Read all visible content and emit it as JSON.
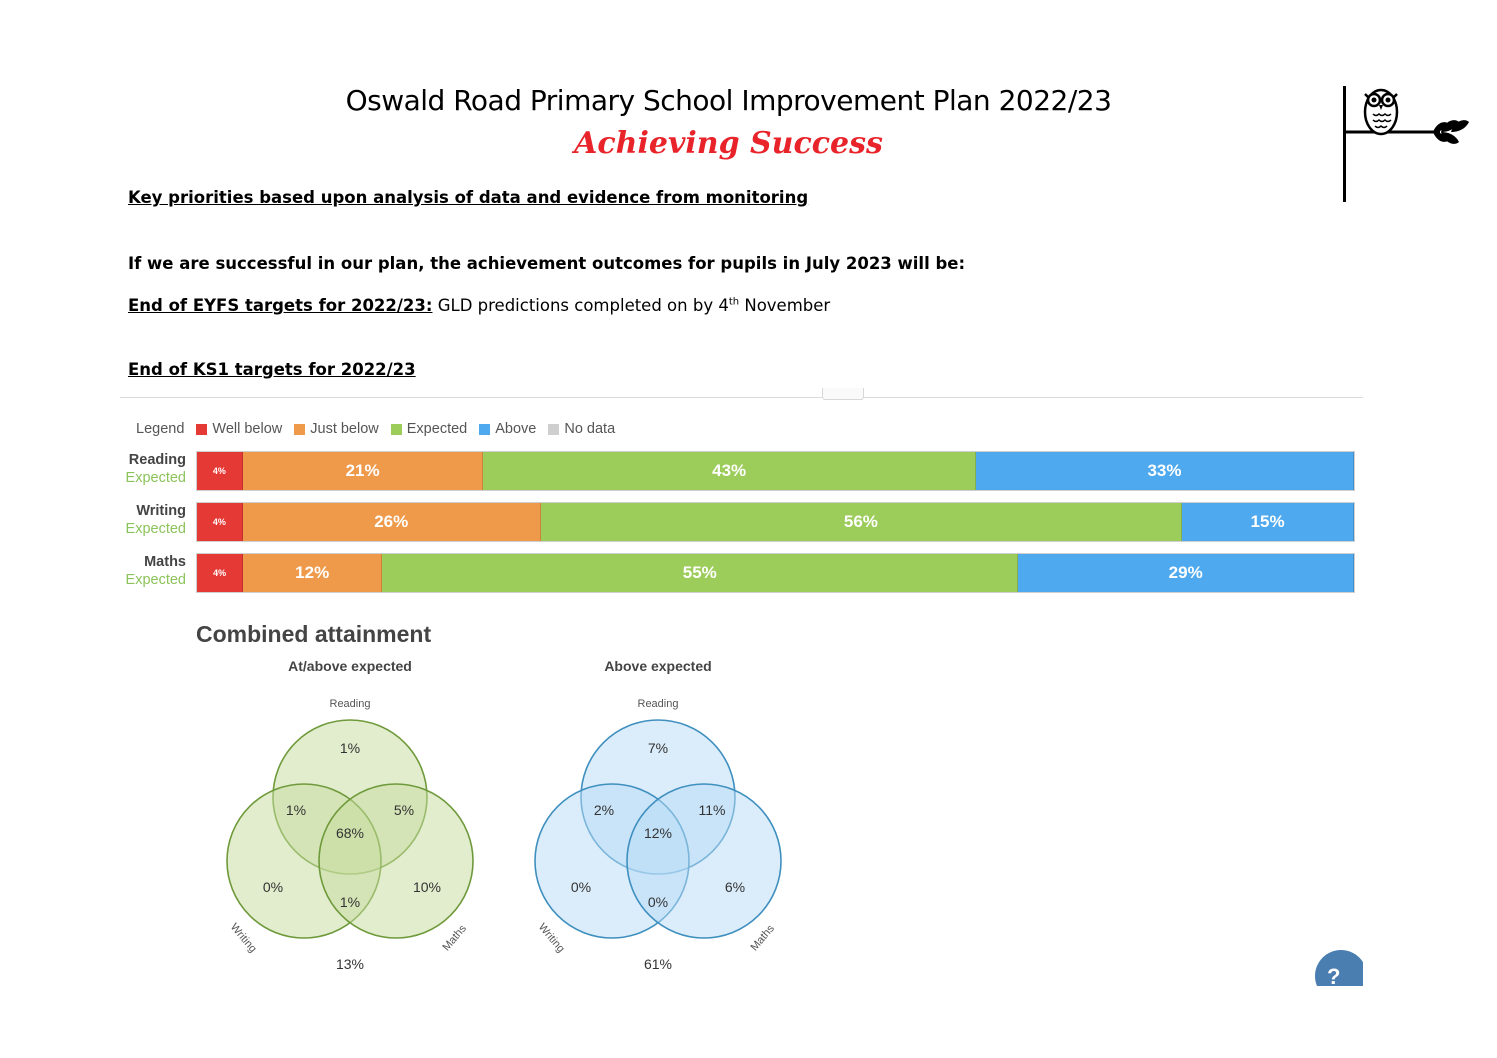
{
  "header": {
    "title": "Oswald Road Primary School Improvement Plan 2022/23",
    "subtitle": "Achieving Success"
  },
  "body": {
    "key_priorities": "Key priorities based upon analysis of data and evidence from monitoring",
    "success_statement": "If we are successful in our plan, the achievement outcomes for pupils in July 2023 will be:",
    "eyfs_heading": "End of EYFS targets for 2022/23:",
    "eyfs_text_pre": " GLD predictions completed on by 4",
    "eyfs_sup": "th",
    "eyfs_text_post": " November",
    "ks1_heading": "End of KS1 targets for 2022/23"
  },
  "chart_data": [
    {
      "type": "bar",
      "legend_label": "Legend",
      "legend": [
        {
          "name": "Well below",
          "color": "#e53935"
        },
        {
          "name": "Just below",
          "color": "#ef9a4a"
        },
        {
          "name": "Expected",
          "color": "#9ccc5a"
        },
        {
          "name": "Above",
          "color": "#4fa9ee"
        },
        {
          "name": "No data",
          "color": "#cfcfcf"
        }
      ],
      "rows": [
        {
          "subject": "Reading",
          "target": "Expected",
          "values": [
            4,
            21,
            43,
            33
          ],
          "labels": [
            "4%",
            "21%",
            "43%",
            "33%"
          ]
        },
        {
          "subject": "Writing",
          "target": "Expected",
          "values": [
            4,
            26,
            56,
            15
          ],
          "labels": [
            "4%",
            "26%",
            "56%",
            "15%"
          ]
        },
        {
          "subject": "Maths",
          "target": "Expected",
          "values": [
            4,
            12,
            55,
            29
          ],
          "labels": [
            "4%",
            "12%",
            "55%",
            "29%"
          ]
        }
      ]
    },
    {
      "type": "venn",
      "section_title": "Combined attainment",
      "charts": [
        {
          "title": "At/above expected",
          "fill": "#c5dc9e",
          "stroke": "#6f9a3b",
          "sets": [
            "Reading",
            "Writing",
            "Maths"
          ],
          "regions": {
            "reading_only": "1%",
            "reading_writing": "1%",
            "reading_maths": "5%",
            "all": "68%",
            "writing_only": "0%",
            "maths_only": "10%",
            "writing_maths": "1%",
            "none": "13%"
          }
        },
        {
          "title": "Above expected",
          "fill": "#b7dcf5",
          "stroke": "#3f8fbf",
          "sets": [
            "Reading",
            "Writing",
            "Maths"
          ],
          "regions": {
            "reading_only": "7%",
            "reading_writing": "2%",
            "reading_maths": "11%",
            "all": "12%",
            "writing_only": "0%",
            "maths_only": "6%",
            "writing_maths": "0%",
            "none": "61%"
          }
        }
      ]
    }
  ]
}
